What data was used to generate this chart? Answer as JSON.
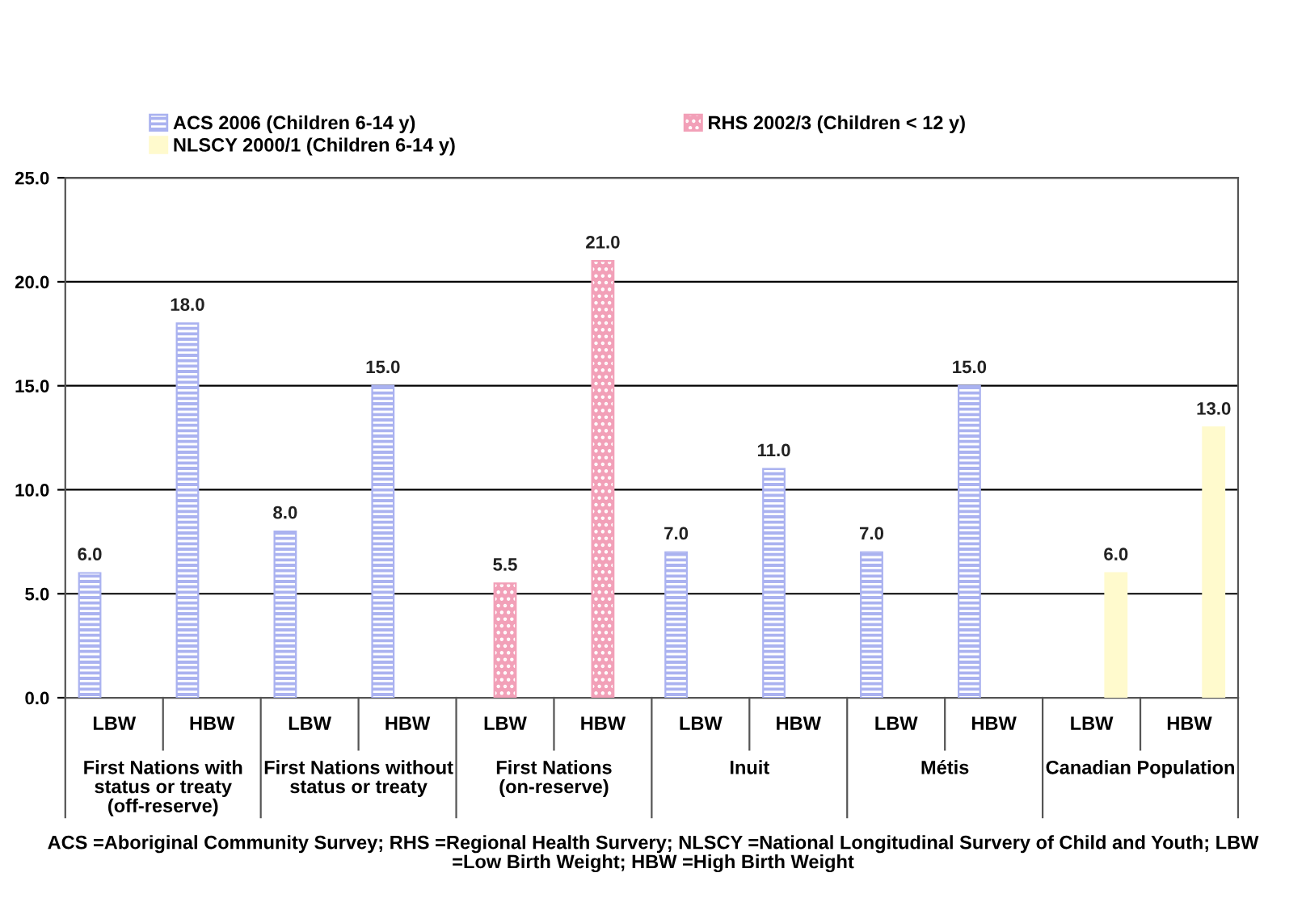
{
  "chart_data": {
    "type": "bar",
    "categories": [
      "LBW",
      "HBW",
      "LBW",
      "HBW",
      "LBW",
      "HBW",
      "LBW",
      "HBW",
      "LBW",
      "HBW",
      "LBW",
      "HBW"
    ],
    "series": [
      {
        "name": "ACS 2006 (Children 6-14 y)",
        "color": "#aab2f0",
        "values": [
          6.0,
          18.0,
          8.0,
          15.0,
          null,
          null,
          7.0,
          11.0,
          7.0,
          15.0,
          null,
          null
        ],
        "value_labels": [
          "6.0",
          "18.0",
          "8.0",
          "15.0",
          null,
          null,
          "7.0",
          "11.0",
          "7.0",
          "15.0",
          null,
          null
        ]
      },
      {
        "name": "RHS 2002/3 (Children < 12 y)",
        "color": "#f2a0b8",
        "values": [
          null,
          null,
          null,
          null,
          5.5,
          21.0,
          null,
          null,
          null,
          null,
          null,
          null
        ],
        "value_labels": [
          null,
          null,
          null,
          null,
          "5.5",
          "21.0",
          null,
          null,
          null,
          null,
          null,
          null
        ]
      },
      {
        "name": "NLSCY 2000/1 (Children 6-14 y)",
        "color": "#fffacd",
        "values": [
          null,
          null,
          null,
          null,
          null,
          null,
          null,
          null,
          null,
          null,
          6.0,
          13.0
        ],
        "value_labels": [
          null,
          null,
          null,
          null,
          null,
          null,
          null,
          null,
          null,
          null,
          "6.0",
          "13.0"
        ]
      }
    ],
    "ylim": [
      0,
      25
    ],
    "yticks": [
      {
        "value": 0,
        "label": "0.0"
      },
      {
        "value": 5,
        "label": "5.0"
      },
      {
        "value": 10,
        "label": "10.0"
      },
      {
        "value": 15,
        "label": "15.0"
      },
      {
        "value": 20,
        "label": "20.0"
      },
      {
        "value": 25,
        "label": "25.0"
      }
    ],
    "grid": "y",
    "legend": "top",
    "annotations": [
      "First Nations with status or treaty (off-reserve)",
      "First Nations without status or treaty",
      "First Nations (on-reserve)",
      "Inuit",
      "Métis",
      "Canadian Population",
      "ACS =Aboriginal Community Survey; RHS =Regional Health Survery; NLSCY =National Longitudinal Survery of Child and Youth; LBW =Low Birth Weight; HBW =High Birth Weight"
    ]
  }
}
